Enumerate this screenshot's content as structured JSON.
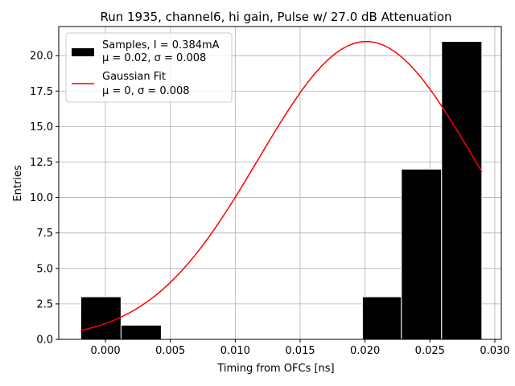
{
  "chart_data": {
    "type": "bar",
    "title": "Run 1935, channel6, hi gain, Pulse w/ 27.0 dB Attenuation",
    "xlabel": "Timing from OFCs [ns]",
    "ylabel": "Entries",
    "xlim": [
      -0.0036,
      0.0305
    ],
    "ylim": [
      0,
      22.05
    ],
    "grid": true,
    "legend_position": "top-left",
    "x_ticks": [
      "0.000",
      "0.005",
      "0.010",
      "0.015",
      "0.020",
      "0.025",
      "0.030"
    ],
    "y_ticks": [
      "0.0",
      "2.5",
      "5.0",
      "7.5",
      "10.0",
      "12.5",
      "15.0",
      "17.5",
      "20.0"
    ],
    "histogram": {
      "name": "Samples, I = 0.384mA",
      "stats": "μ = 0.02, σ = 0.008",
      "color": "#000000",
      "bins": [
        {
          "x0": -0.0019,
          "x1": 0.0012,
          "count": 3
        },
        {
          "x0": 0.0012,
          "x1": 0.0043,
          "count": 1
        },
        {
          "x0": 0.0043,
          "x1": 0.0074,
          "count": 0
        },
        {
          "x0": 0.0074,
          "x1": 0.0105,
          "count": 0
        },
        {
          "x0": 0.0105,
          "x1": 0.0136,
          "count": 0
        },
        {
          "x0": 0.0136,
          "x1": 0.0167,
          "count": 0
        },
        {
          "x0": 0.0167,
          "x1": 0.0198,
          "count": 0
        },
        {
          "x0": 0.0198,
          "x1": 0.0228,
          "count": 3
        },
        {
          "x0": 0.0228,
          "x1": 0.0259,
          "count": 12
        },
        {
          "x0": 0.0259,
          "x1": 0.029,
          "count": 21
        }
      ]
    },
    "fit": {
      "name": "Gaussian Fit",
      "stats": "μ = 0, σ = 0.008",
      "color": "#ff0000",
      "amplitude": 21.0,
      "mean": 0.0201,
      "sigma": 0.0083,
      "x_range": [
        -0.0019,
        0.029
      ]
    }
  }
}
